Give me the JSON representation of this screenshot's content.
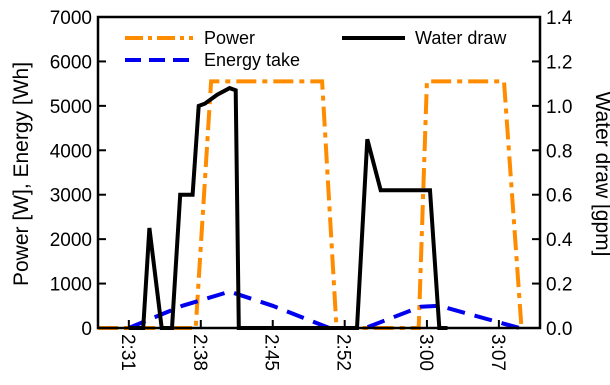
{
  "chart_data": {
    "type": "line",
    "title": "",
    "xlabel": "",
    "ylabel_left": "Power [W], Energy [Wh]",
    "ylabel_right": "Water draw [gpm]",
    "xlim": [
      "2:28",
      "3:11"
    ],
    "ylim_left": [
      0,
      7000
    ],
    "ylim_right": [
      0,
      1.4
    ],
    "x_ticks": [
      "2:31",
      "2:38",
      "2:45",
      "2:52",
      "3:00",
      "3:07"
    ],
    "y_ticks_left": [
      0,
      1000,
      2000,
      3000,
      4000,
      5000,
      6000,
      7000
    ],
    "y_ticks_right": [
      0.0,
      0.2,
      0.4,
      0.6,
      0.8,
      1.0,
      1.2,
      1.4
    ],
    "y_ticks_right_labels": [
      "0.0",
      "0.2",
      "0.4",
      "0.6",
      "0.8",
      "1.0",
      "1.2",
      "1.4"
    ],
    "grid": false,
    "legend_placement": "top",
    "series": [
      {
        "name": "Power",
        "axis": "left",
        "color": "#ff8c00",
        "dash": "dash-dot",
        "points": [
          [
            "2:28",
            0
          ],
          [
            "2:37:30",
            0
          ],
          [
            "2:39:00",
            5550
          ],
          [
            "2:49:48",
            5550
          ],
          [
            "2:51:12",
            0
          ],
          [
            "2:59:12",
            0
          ],
          [
            "3:00:00",
            5550
          ],
          [
            "3:07:30",
            5550
          ],
          [
            "3:09:12",
            0
          ]
        ]
      },
      {
        "name": "Energy take",
        "axis": "left",
        "color": "#0000ee",
        "dash": "dashed",
        "points": [
          [
            "2:31:00",
            0
          ],
          [
            "2:36:12",
            500
          ],
          [
            "2:40:48",
            820
          ],
          [
            "2:45:00",
            500
          ],
          [
            "2:50:30",
            0
          ],
          [
            "2:54:00",
            0
          ],
          [
            "2:59:24",
            480
          ],
          [
            "3:01:12",
            500
          ],
          [
            "3:09:00",
            0
          ]
        ]
      },
      {
        "name": "Water draw",
        "axis": "right",
        "color": "#000000",
        "dash": "solid",
        "points": [
          [
            "2:31:00",
            0
          ],
          [
            "2:32:24",
            0
          ],
          [
            "2:33:00",
            0.45
          ],
          [
            "2:34:12",
            0
          ],
          [
            "2:35:12",
            0
          ],
          [
            "2:36:00",
            0.6
          ],
          [
            "2:37:12",
            0.6
          ],
          [
            "2:37:48",
            1.0
          ],
          [
            "2:38:24",
            1.01
          ],
          [
            "2:39:36",
            1.05
          ],
          [
            "2:40:48",
            1.08
          ],
          [
            "2:41:24",
            1.07
          ],
          [
            "2:41:42",
            0
          ],
          [
            "2:42:00",
            0
          ],
          [
            "2:53:12",
            0
          ],
          [
            "2:54:12",
            0.85
          ],
          [
            "2:55:30",
            0.62
          ],
          [
            "2:58:00",
            0.62
          ],
          [
            "2:59:36",
            0.62
          ],
          [
            "3:00:18",
            0.62
          ],
          [
            "3:01:12",
            0
          ],
          [
            "3:02:00",
            0
          ]
        ]
      }
    ]
  }
}
